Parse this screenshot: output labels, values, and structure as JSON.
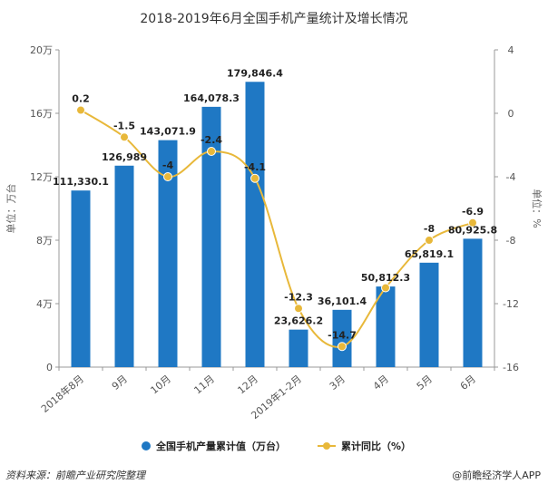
{
  "chart_data": {
    "type": "bar",
    "title": "2018-2019年6月全国手机产量统计及增长情况",
    "categories": [
      "2018年8月",
      "9月",
      "10月",
      "11月",
      "12月",
      "2019年1-2月",
      "3月",
      "4月",
      "5月",
      "6月"
    ],
    "series": [
      {
        "name": "全国手机产量累计值（万台）",
        "type": "bar",
        "axis": "left",
        "color": "#1f78c4",
        "values": [
          111330.1,
          126989,
          143071.9,
          164078.3,
          179846.4,
          23626.2,
          36101.4,
          50812.3,
          65819.1,
          80925.8
        ],
        "labels": [
          "111,330.1",
          "126,989",
          "143,071.9",
          "164,078.3",
          "179,846.4",
          "23,626.2",
          "36,101.4",
          "50,812.3",
          "65,819.1",
          "80,925.8"
        ]
      },
      {
        "name": "累计同比（%）",
        "type": "line",
        "axis": "right",
        "color": "#e8b83a",
        "values": [
          0.2,
          -1.5,
          -4,
          -2.4,
          -4.1,
          -12.3,
          -14.7,
          -11.0,
          -8,
          -6.9
        ],
        "labels": [
          "0.2",
          "-1.5",
          "-4",
          "-2.4",
          "-4.1",
          "-12.3",
          "-14.7",
          "",
          "-8",
          "-6.9"
        ]
      }
    ],
    "y_left": {
      "label": "单位：万台",
      "min": 0,
      "max": 200000,
      "ticks": [
        0,
        40000,
        80000,
        120000,
        160000,
        200000
      ],
      "tick_labels": [
        "0",
        "4万",
        "8万",
        "12万",
        "16万",
        "20万"
      ]
    },
    "y_right": {
      "label": "单位：%",
      "min": -16,
      "max": 4,
      "ticks": [
        -16,
        -12,
        -8,
        -4,
        0,
        4
      ],
      "tick_labels": [
        "-16",
        "-12",
        "-8",
        "-4",
        "0",
        "4"
      ]
    },
    "legend": "bottom",
    "grid": false
  },
  "footer": {
    "source": "资料来源：前瞻产业研究院整理",
    "brand": "@前瞻经济学人APP"
  }
}
